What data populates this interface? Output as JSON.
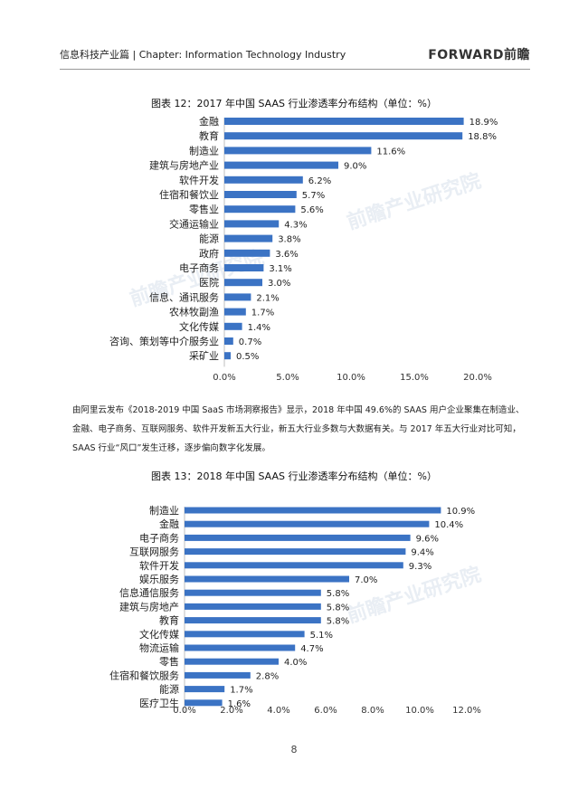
{
  "header": {
    "left": "信息科技产业篇 | Chapter: Information Technology Industry",
    "logo": "FORWARD前瞻"
  },
  "colors": {
    "bar": "#3b73c4",
    "rule": "#999999",
    "grid": "#d9d9d9"
  },
  "body_text": "由阿里云发布《2018-2019 中国 SaaS 市场洞察报告》显示，2018 年中国 49.6%的 SAAS 用户企业聚集在制造业、金融、电子商务、互联网服务、软件开发新五大行业，新五大行业多数与大数据有关。与 2017 年五大行业对比可知，SAAS 行业“风口”发生迁移，逐步偏向数字化发展。",
  "page_number": "8",
  "chart_data": [
    {
      "type": "bar",
      "orientation": "horizontal",
      "title": "图表 12：2017 年中国 SAAS 行业渗透率分布结构（单位：%）",
      "categories": [
        "金融",
        "教育",
        "制造业",
        "建筑与房地产业",
        "软件开发",
        "住宿和餐饮业",
        "零售业",
        "交通运输业",
        "能源",
        "政府",
        "电子商务",
        "医院",
        "信息、通讯服务",
        "农林牧副渔",
        "文化传媒",
        "咨询、策划等中介服务业",
        "采矿业"
      ],
      "values": [
        18.9,
        18.8,
        11.6,
        9.0,
        6.2,
        5.7,
        5.6,
        4.3,
        3.8,
        3.6,
        3.1,
        3.0,
        2.1,
        1.7,
        1.4,
        0.7,
        0.5
      ],
      "value_labels": [
        "18.9%",
        "18.8%",
        "11.6%",
        "9.0%",
        "6.2%",
        "5.7%",
        "5.6%",
        "4.3%",
        "3.8%",
        "3.6%",
        "3.1%",
        "3.0%",
        "2.1%",
        "1.7%",
        "1.4%",
        "0.7%",
        "0.5%"
      ],
      "xlim": [
        0,
        20
      ],
      "xticks": [
        "0.0%",
        "5.0%",
        "10.0%",
        "15.0%",
        "20.0%"
      ],
      "grid": false
    },
    {
      "type": "bar",
      "orientation": "horizontal",
      "title": "图表 13：2018 年中国 SAAS 行业渗透率分布结构（单位：%）",
      "categories": [
        "制造业",
        "金融",
        "电子商务",
        "互联网服务",
        "软件开发",
        "娱乐服务",
        "信息通信服务",
        "建筑与房地产",
        "教育",
        "文化传媒",
        "物流运输",
        "零售",
        "住宿和餐饮服务",
        "能源",
        "医疗卫生"
      ],
      "values": [
        10.9,
        10.4,
        9.6,
        9.4,
        9.3,
        7.0,
        5.8,
        5.8,
        5.8,
        5.1,
        4.7,
        4.0,
        2.8,
        1.7,
        1.6
      ],
      "value_labels": [
        "10.9%",
        "10.4%",
        "9.6%",
        "9.4%",
        "9.3%",
        "7.0%",
        "5.8%",
        "5.8%",
        "5.8%",
        "5.1%",
        "4.7%",
        "4.0%",
        "2.8%",
        "1.7%",
        "1.6%"
      ],
      "xlim": [
        0,
        12
      ],
      "xticks": [
        "0.0%",
        "2.0%",
        "4.0%",
        "6.0%",
        "8.0%",
        "10.0%",
        "12.0%"
      ],
      "grid": false
    }
  ]
}
